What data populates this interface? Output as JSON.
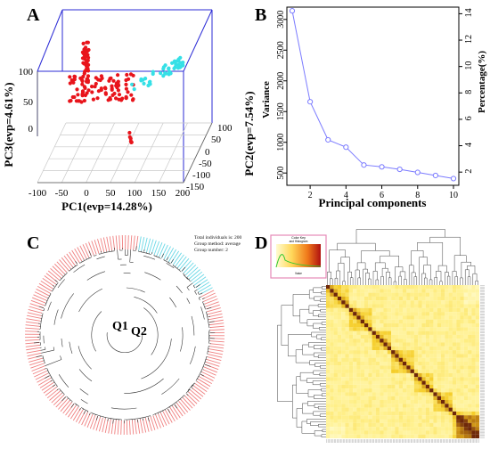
{
  "panels": {
    "a": "A",
    "b": "B",
    "c": "C",
    "d": "D"
  },
  "chart_data": [
    {
      "panel": "A",
      "type": "scatter",
      "xlabel": "PC1(evp=14.28%)",
      "ylabel": "PC3(evp=4.61%)",
      "zlabel": "PC2",
      "x_ticks": [
        "-100",
        "-50",
        "0",
        "50",
        "100",
        "150",
        "200"
      ],
      "z_ticks": [
        "0",
        "50",
        "100"
      ],
      "depth_ticks": [
        "100",
        "50",
        "0",
        "-50",
        "-100",
        "-150"
      ],
      "series": [
        {
          "name": "Q1",
          "color": "#e8141b"
        },
        {
          "name": "Q2",
          "color": "#35e0e6"
        }
      ]
    },
    {
      "panel": "B",
      "type": "line",
      "xlabel": "Principal components",
      "ylabel": "Variance",
      "y2label": "Percentage(%)",
      "overlay_label": "PC2(evp=7.54%)",
      "x": [
        1,
        2,
        3,
        4,
        5,
        6,
        7,
        8,
        9,
        10
      ],
      "values": [
        3140,
        1660,
        1040,
        920,
        630,
        600,
        560,
        510,
        460,
        410
      ],
      "xlim": [
        1,
        10
      ],
      "ylim": [
        300,
        3200
      ],
      "x_ticks": [
        2,
        4,
        6,
        8,
        10
      ],
      "y_ticks": [
        500,
        1000,
        1500,
        2000,
        2500,
        3000
      ],
      "y2_ticks": [
        2,
        4,
        6,
        8,
        10,
        12,
        14
      ],
      "y2lim": [
        1,
        14.5
      ],
      "color": "#7b7bff"
    },
    {
      "panel": "C",
      "type": "circular-dendrogram",
      "legend_lines": [
        "Total individuals is: 200",
        "Group method: average",
        "Group number: 2"
      ],
      "groups": [
        "Q1",
        "Q2"
      ],
      "group_colors": [
        "#f08080",
        "#6ad8e6"
      ]
    },
    {
      "panel": "D",
      "type": "heatmap",
      "color_key_title": "Color Key",
      "color_key_subtitle": "and Histogram",
      "color_key_axis": "Value"
    }
  ]
}
